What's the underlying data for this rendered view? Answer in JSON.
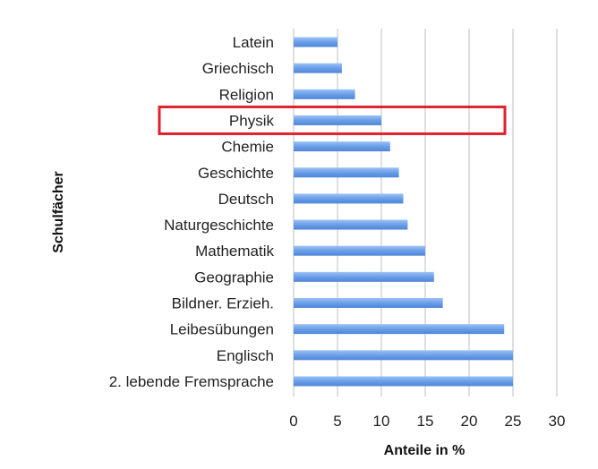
{
  "chart_data": {
    "type": "bar",
    "orientation": "horizontal",
    "categories": [
      "Latein",
      "Griechisch",
      "Religion",
      "Physik",
      "Chemie",
      "Geschichte",
      "Deutsch",
      "Naturgeschichte",
      "Mathematik",
      "Geographie",
      "Bildner. Erzieh.",
      "Leibesübungen",
      "Englisch",
      "2. lebende Fremsprache"
    ],
    "values": [
      5,
      5.5,
      7,
      10,
      11,
      12,
      12.5,
      13,
      15,
      16,
      17,
      24,
      25,
      25
    ],
    "xlabel": "Anteile in %",
    "ylabel": "Schulfächer",
    "xlim": [
      0,
      30
    ],
    "xticks": [
      0,
      5,
      10,
      15,
      20,
      25,
      30
    ],
    "grid": "vertical",
    "highlighted_category": "Physik",
    "colors": {
      "bar": "#6a9ee8",
      "bar_highlight": "#8ab6f2",
      "highlight_box": "#e0202a",
      "grid": "#bfbfbf"
    }
  }
}
